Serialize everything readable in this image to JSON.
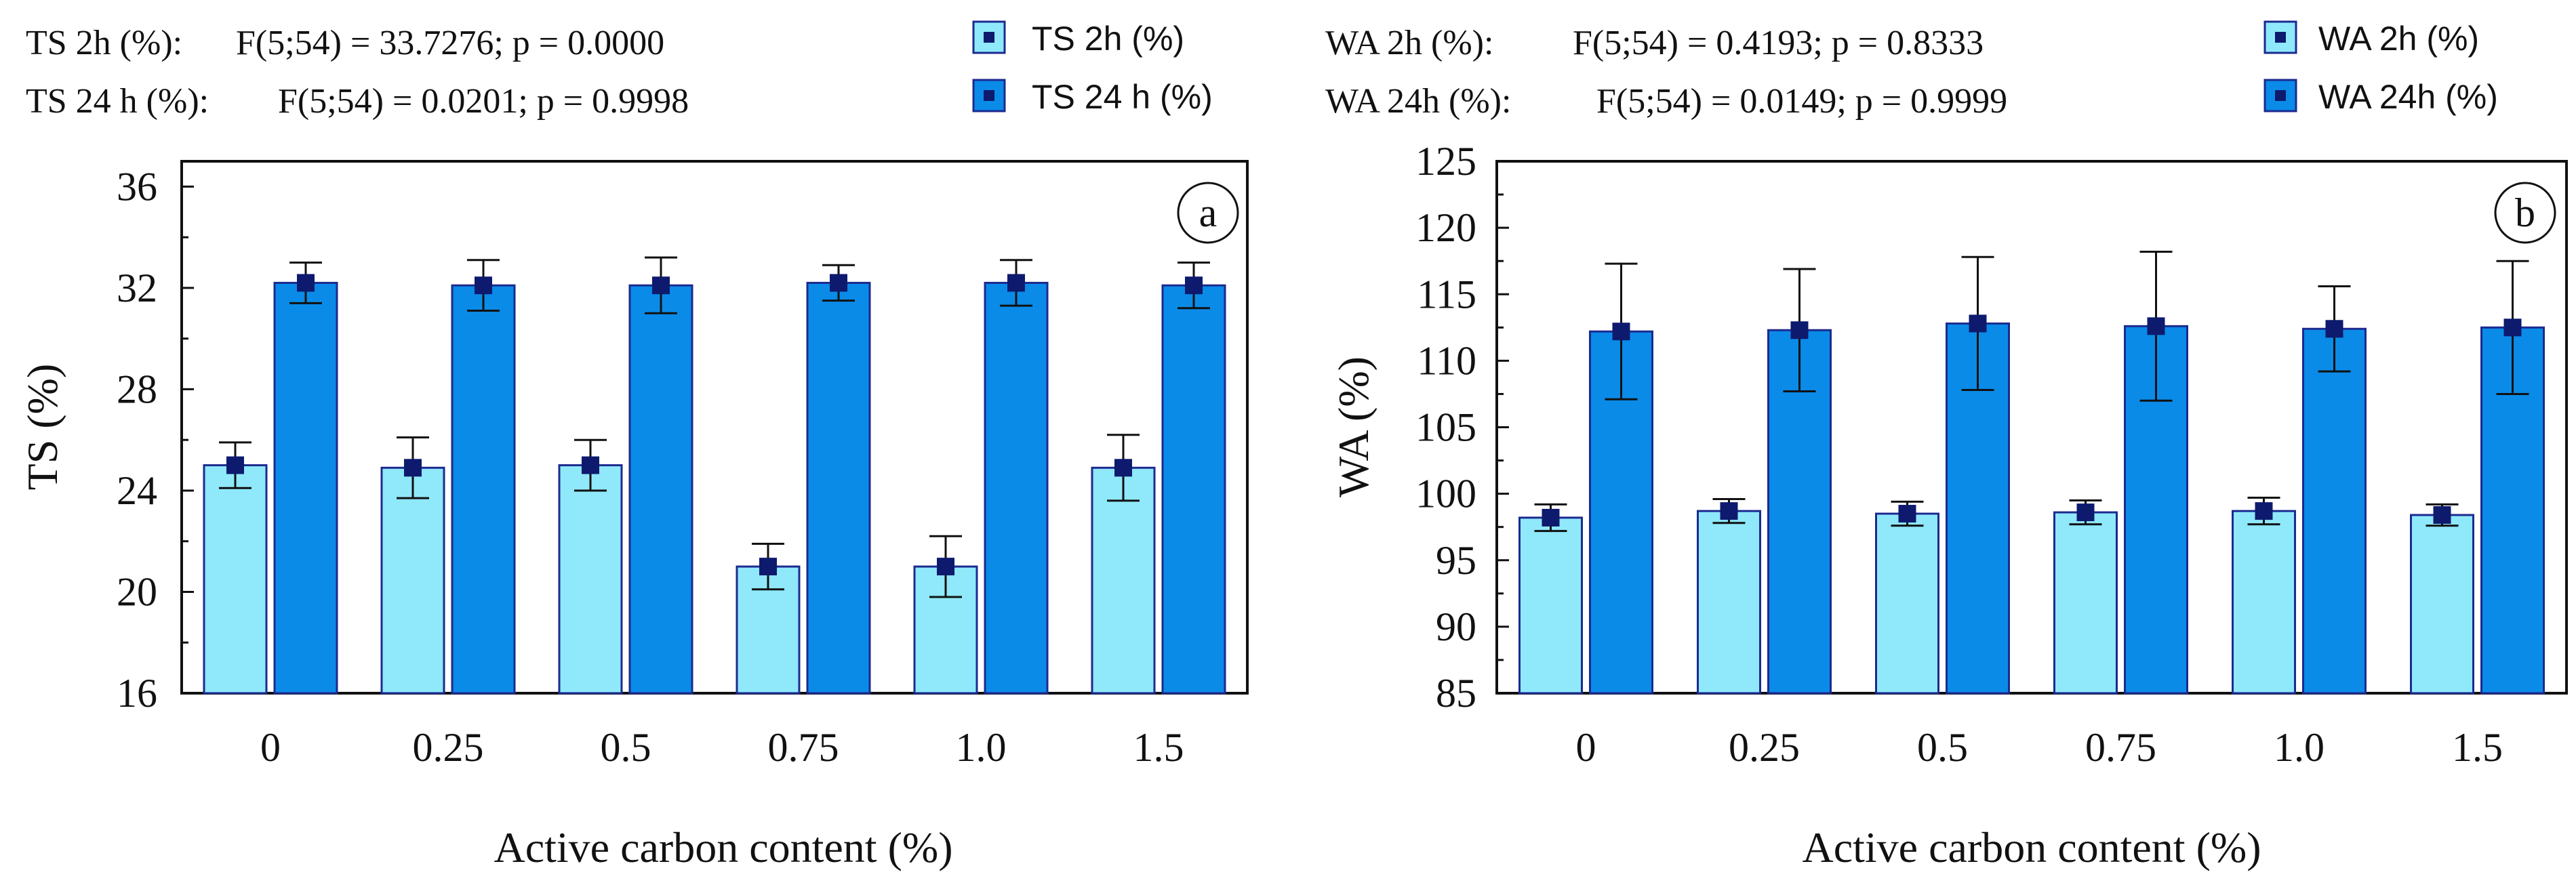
{
  "colors": {
    "series_2h": "#8fe9fb",
    "series_24h": "#0a8be8",
    "bar_edge": "#1c2a8f",
    "marker": "#0d1a6e",
    "axis": "#111111"
  },
  "chart_data": [
    {
      "id": "a",
      "type": "bar",
      "panel_label": "a",
      "categories": [
        "0",
        "0.25",
        "0.5",
        "0.75",
        "1.0",
        "1.5"
      ],
      "series": [
        {
          "name": "TS 2h (%)",
          "values": [
            25.0,
            24.9,
            25.0,
            21.0,
            21.0,
            24.9
          ],
          "errors": [
            0.9,
            1.2,
            1.0,
            0.9,
            1.2,
            1.3
          ]
        },
        {
          "name": "TS 24 h (%)",
          "values": [
            32.2,
            32.1,
            32.1,
            32.2,
            32.2,
            32.1
          ],
          "errors": [
            0.8,
            1.0,
            1.1,
            0.7,
            0.9,
            0.9
          ]
        }
      ],
      "stats": [
        {
          "label": "TS 2h (%):",
          "value": "F(5;54) = 33.7276; p = 0.0000"
        },
        {
          "label": "TS 24 h (%):",
          "value": "F(5;54) = 0.0201; p = 0.9998"
        }
      ],
      "title": "",
      "xlabel": "Active carbon content (%)",
      "ylabel": "TS (%)",
      "ylim": [
        16,
        37
      ],
      "yticks": [
        16,
        20,
        24,
        28,
        32,
        36
      ],
      "grid": false,
      "legend_position": "top-right"
    },
    {
      "id": "b",
      "type": "bar",
      "panel_label": "b",
      "categories": [
        "0",
        "0.25",
        "0.5",
        "0.75",
        "1.0",
        "1.5"
      ],
      "series": [
        {
          "name": "WA 2h (%)",
          "values": [
            98.2,
            98.7,
            98.5,
            98.6,
            98.7,
            98.4
          ],
          "errors": [
            1.0,
            0.9,
            0.9,
            0.9,
            1.0,
            0.8
          ]
        },
        {
          "name": "WA 24h (%)",
          "values": [
            112.2,
            112.3,
            112.8,
            112.6,
            112.4,
            112.5
          ],
          "errors": [
            5.1,
            4.6,
            5.0,
            5.6,
            3.2,
            5.0
          ]
        }
      ],
      "stats": [
        {
          "label": "WA 2h (%):",
          "value": "F(5;54) = 0.4193; p = 0.8333"
        },
        {
          "label": "WA 24h (%):",
          "value": "F(5;54) = 0.0149; p = 0.9999"
        }
      ],
      "title": "",
      "xlabel": "Active carbon content (%)",
      "ylabel": "WA (%)",
      "ylim": [
        85,
        125
      ],
      "yticks": [
        85,
        90,
        95,
        100,
        105,
        110,
        115,
        120,
        125
      ],
      "grid": false,
      "legend_position": "top-right"
    }
  ]
}
